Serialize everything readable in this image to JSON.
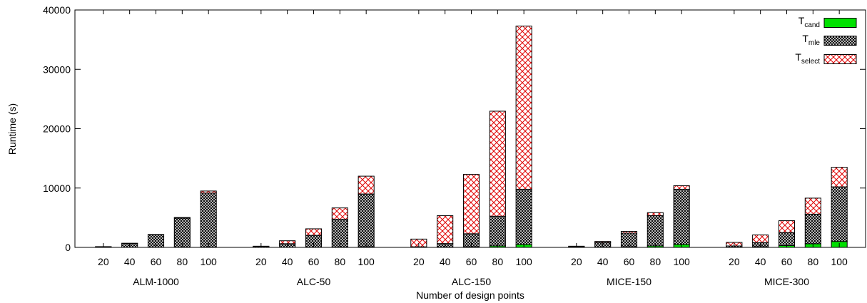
{
  "chart_data": {
    "type": "bar",
    "stacked": true,
    "title": "",
    "xlabel": "Number of design points",
    "ylabel": "Runtime (s)",
    "ylim": [
      0,
      40000
    ],
    "yticks": [
      0,
      10000,
      20000,
      30000,
      40000
    ],
    "ytick_labels": [
      "0",
      "10000",
      "20000",
      "30000",
      "40000"
    ],
    "grid": false,
    "legend_position": "top-right",
    "categories": [
      "20",
      "40",
      "60",
      "80",
      "100"
    ],
    "groups": [
      "ALM-1000",
      "ALC-50",
      "ALC-150",
      "MICE-150",
      "MICE-300"
    ],
    "series": [
      {
        "name": "T_cand",
        "label_main": "T",
        "label_sub": "cand",
        "color": "#00e000",
        "pattern": "solid",
        "values": [
          [
            10,
            20,
            30,
            40,
            50
          ],
          [
            10,
            20,
            30,
            50,
            100
          ],
          [
            20,
            40,
            100,
            250,
            500
          ],
          [
            20,
            40,
            100,
            250,
            500
          ],
          [
            40,
            100,
            300,
            600,
            1000
          ]
        ]
      },
      {
        "name": "T_mle",
        "label_main": "T",
        "label_sub": "mle",
        "color": "#000000",
        "pattern": "crosshatch",
        "values": [
          [
            100,
            650,
            2100,
            4900,
            9100
          ],
          [
            150,
            600,
            2000,
            4700,
            8900
          ],
          [
            80,
            600,
            2200,
            5000,
            9300
          ],
          [
            80,
            800,
            2300,
            5100,
            9300
          ],
          [
            200,
            700,
            2200,
            5000,
            9200
          ]
        ]
      },
      {
        "name": "T_select",
        "label_main": "T",
        "label_sub": "select",
        "color": "#e00000",
        "pattern": "crosshatch-red",
        "values": [
          [
            20,
            30,
            50,
            100,
            350
          ],
          [
            40,
            500,
            1100,
            1900,
            3000
          ],
          [
            1300,
            4700,
            10000,
            17700,
            27500
          ],
          [
            100,
            160,
            300,
            500,
            600
          ],
          [
            600,
            1300,
            2000,
            2700,
            3300
          ]
        ]
      }
    ]
  }
}
